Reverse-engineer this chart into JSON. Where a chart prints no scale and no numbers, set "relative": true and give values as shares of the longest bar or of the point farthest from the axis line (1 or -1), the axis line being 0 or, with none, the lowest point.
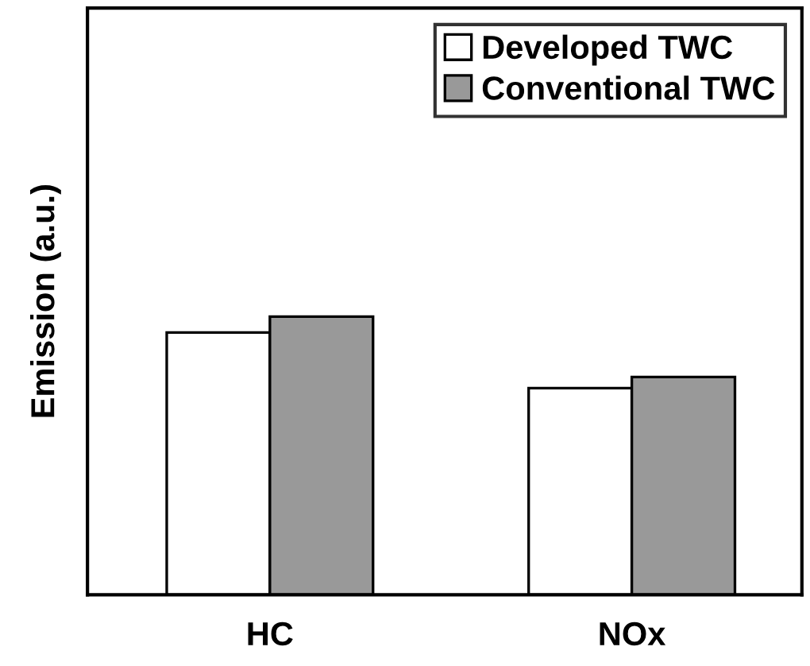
{
  "chart_data": {
    "type": "bar",
    "ylabel": "Emission (a.u.)",
    "categories": [
      "HC",
      "NOx"
    ],
    "relative": true,
    "legend": "top right",
    "series": [
      {
        "name": "Developed TWC",
        "color": "#ffffff",
        "values": [
          0.943,
          0.743
        ]
      },
      {
        "name": "Conventional TWC",
        "color": "#999999",
        "values": [
          1,
          0.783
        ]
      }
    ]
  }
}
